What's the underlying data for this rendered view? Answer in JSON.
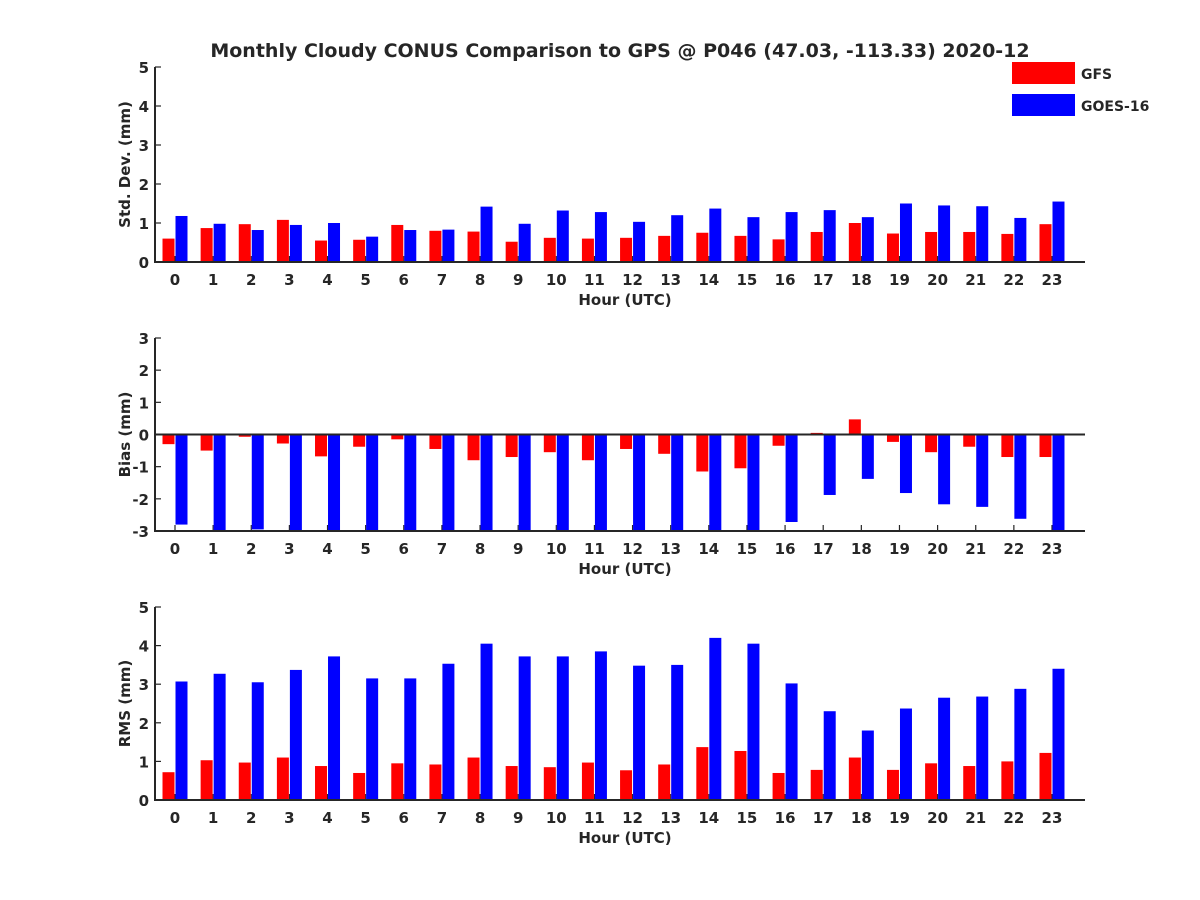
{
  "title": "Monthly Cloudy CONUS Comparison to GPS @ P046 (47.03, -113.33) 2020-12",
  "legend": [
    {
      "label": "GFS",
      "color": "#ff0000"
    },
    {
      "label": "GOES-16",
      "color": "#0000ff"
    }
  ],
  "chart_data": [
    {
      "type": "bar",
      "xlabel": "Hour (UTC)",
      "ylabel": "Std. Dev. (mm)",
      "ylim": [
        0,
        5
      ],
      "yticks": [
        0,
        1,
        2,
        3,
        4,
        5
      ],
      "categories": [
        "0",
        "1",
        "2",
        "3",
        "4",
        "5",
        "6",
        "7",
        "8",
        "9",
        "10",
        "11",
        "12",
        "13",
        "14",
        "15",
        "16",
        "17",
        "18",
        "19",
        "20",
        "21",
        "22",
        "23"
      ],
      "series": [
        {
          "name": "GFS",
          "color": "#ff0000",
          "values": [
            0.6,
            0.87,
            0.97,
            1.08,
            0.55,
            0.57,
            0.95,
            0.8,
            0.78,
            0.52,
            0.62,
            0.6,
            0.62,
            0.67,
            0.75,
            0.67,
            0.58,
            0.77,
            1.0,
            0.73,
            0.77,
            0.77,
            0.72,
            0.97
          ]
        },
        {
          "name": "GOES-16",
          "color": "#0000ff",
          "values": [
            1.18,
            0.98,
            0.82,
            0.95,
            1.0,
            0.65,
            0.82,
            0.83,
            1.42,
            0.98,
            1.32,
            1.28,
            1.03,
            1.2,
            1.37,
            1.15,
            1.28,
            1.33,
            1.15,
            1.5,
            1.45,
            1.43,
            1.13,
            1.55
          ]
        }
      ]
    },
    {
      "type": "bar",
      "xlabel": "Hour (UTC)",
      "ylabel": "Bias (mm)",
      "ylim": [
        -3,
        3
      ],
      "yticks": [
        -3,
        -2,
        -1,
        0,
        1,
        2,
        3
      ],
      "categories": [
        "0",
        "1",
        "2",
        "3",
        "4",
        "5",
        "6",
        "7",
        "8",
        "9",
        "10",
        "11",
        "12",
        "13",
        "14",
        "15",
        "16",
        "17",
        "18",
        "19",
        "20",
        "21",
        "22",
        "23"
      ],
      "series": [
        {
          "name": "GFS",
          "color": "#ff0000",
          "values": [
            -0.3,
            -0.5,
            -0.07,
            -0.28,
            -0.68,
            -0.38,
            -0.15,
            -0.45,
            -0.8,
            -0.7,
            -0.55,
            -0.8,
            -0.45,
            -0.6,
            -1.15,
            -1.05,
            -0.35,
            0.05,
            0.47,
            -0.23,
            -0.55,
            -0.38,
            -0.7,
            -0.7
          ]
        },
        {
          "name": "GOES-16",
          "color": "#0000ff",
          "values": [
            -2.8,
            -3.0,
            -2.95,
            -3.0,
            -3.0,
            -3.0,
            -3.0,
            -3.0,
            -3.0,
            -3.0,
            -3.0,
            -3.0,
            -3.0,
            -3.0,
            -3.0,
            -3.0,
            -2.72,
            -1.88,
            -1.38,
            -1.82,
            -2.17,
            -2.25,
            -2.62,
            -3.0
          ]
        }
      ]
    },
    {
      "type": "bar",
      "xlabel": "Hour (UTC)",
      "ylabel": "RMS (mm)",
      "ylim": [
        0,
        5
      ],
      "yticks": [
        0,
        1,
        2,
        3,
        4,
        5
      ],
      "categories": [
        "0",
        "1",
        "2",
        "3",
        "4",
        "5",
        "6",
        "7",
        "8",
        "9",
        "10",
        "11",
        "12",
        "13",
        "14",
        "15",
        "16",
        "17",
        "18",
        "19",
        "20",
        "21",
        "22",
        "23"
      ],
      "series": [
        {
          "name": "GFS",
          "color": "#ff0000",
          "values": [
            0.72,
            1.03,
            0.97,
            1.1,
            0.88,
            0.7,
            0.95,
            0.92,
            1.1,
            0.88,
            0.85,
            0.97,
            0.77,
            0.92,
            1.37,
            1.27,
            0.7,
            0.78,
            1.1,
            0.78,
            0.95,
            0.88,
            1.0,
            1.22
          ]
        },
        {
          "name": "GOES-16",
          "color": "#0000ff",
          "values": [
            3.07,
            3.27,
            3.05,
            3.37,
            3.72,
            3.15,
            3.15,
            3.53,
            4.05,
            3.72,
            3.72,
            3.85,
            3.48,
            3.5,
            4.2,
            4.05,
            3.02,
            2.3,
            1.8,
            2.37,
            2.65,
            2.68,
            2.88,
            3.4
          ]
        }
      ]
    }
  ]
}
